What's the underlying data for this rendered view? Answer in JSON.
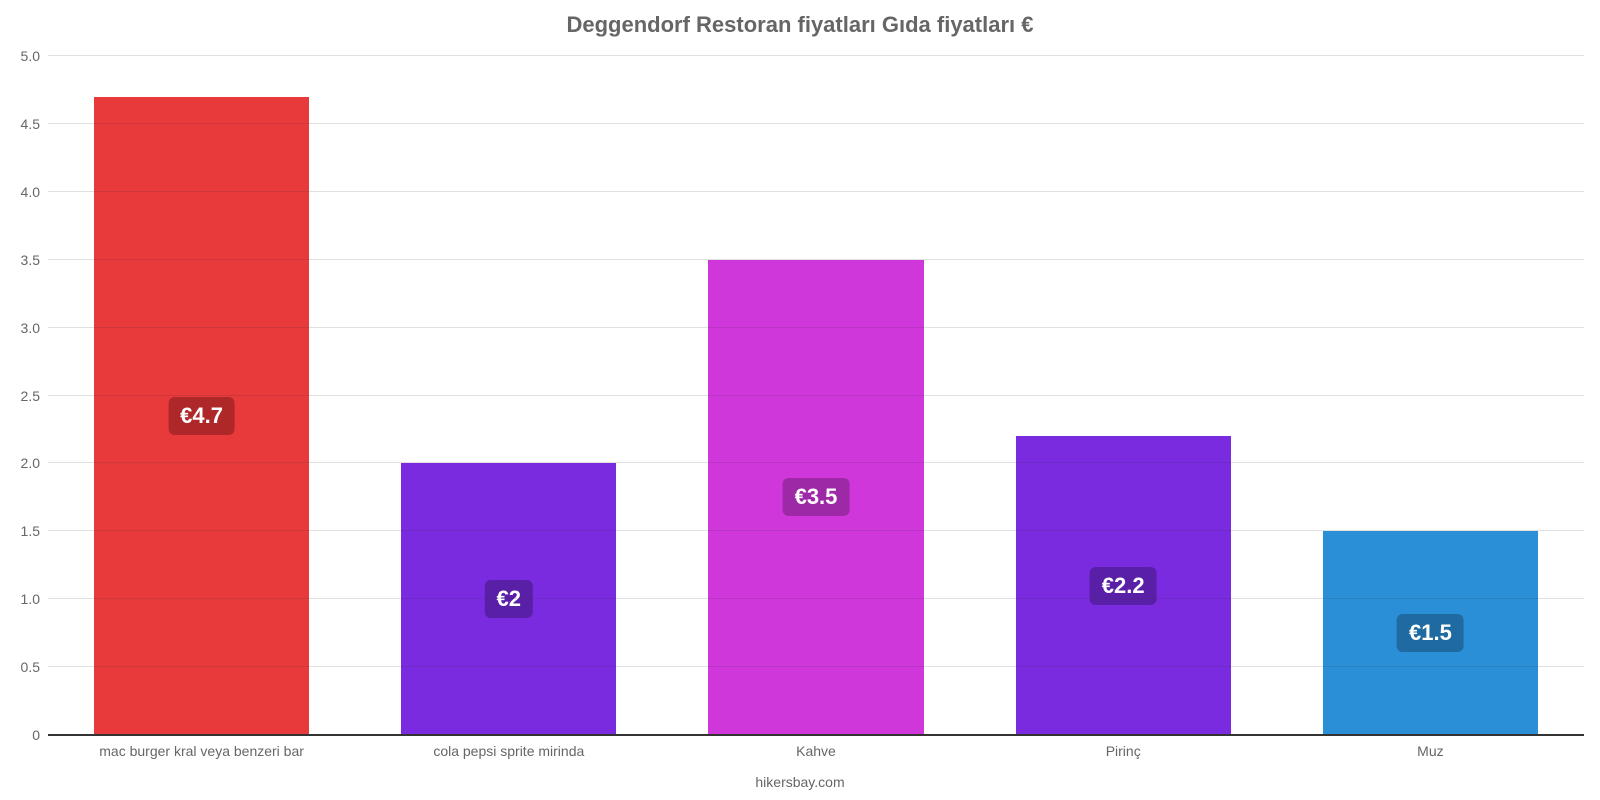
{
  "chart": {
    "type": "bar",
    "title": "Deggendorf Restoran fiyatları Gıda fiyatları €",
    "title_fontsize": 22,
    "title_color": "#666666",
    "background_color": "#ffffff",
    "axis_text_color": "#666666",
    "axis_fontsize": 14,
    "ylim": [
      0,
      5.0
    ],
    "y_ticks": [
      0,
      0.5,
      1.0,
      1.5,
      2.0,
      2.5,
      3.0,
      3.5,
      4.0,
      4.5,
      5.0
    ],
    "y_tick_labels": [
      "0",
      "0.5",
      "1.0",
      "1.5",
      "2.0",
      "2.5",
      "3.0",
      "3.5",
      "4.0",
      "4.5",
      "5.0"
    ],
    "bar_width": 0.7,
    "grid_color": "#333333",
    "grid_opacity": 0.15,
    "categories": [
      "mac burger kral veya benzeri bar",
      "cola pepsi sprite mirinda",
      "Kahve",
      "Pirinç",
      "Muz"
    ],
    "values": [
      4.7,
      2.0,
      3.5,
      2.2,
      1.5
    ],
    "value_labels": [
      "€4.7",
      "€2",
      "€3.5",
      "€2.2",
      "€1.5"
    ],
    "bar_colors": [
      "#e8393b",
      "#7a2be0",
      "#cf37db",
      "#7a2be0",
      "#2b8fd8"
    ],
    "badge_colors": [
      "#af2829",
      "#5a1fa7",
      "#9e29a7",
      "#5a1fa7",
      "#1f6aa0"
    ],
    "badge_text_color": "#ffffff",
    "badge_fontsize": 22,
    "footer": "hikersbay.com"
  }
}
